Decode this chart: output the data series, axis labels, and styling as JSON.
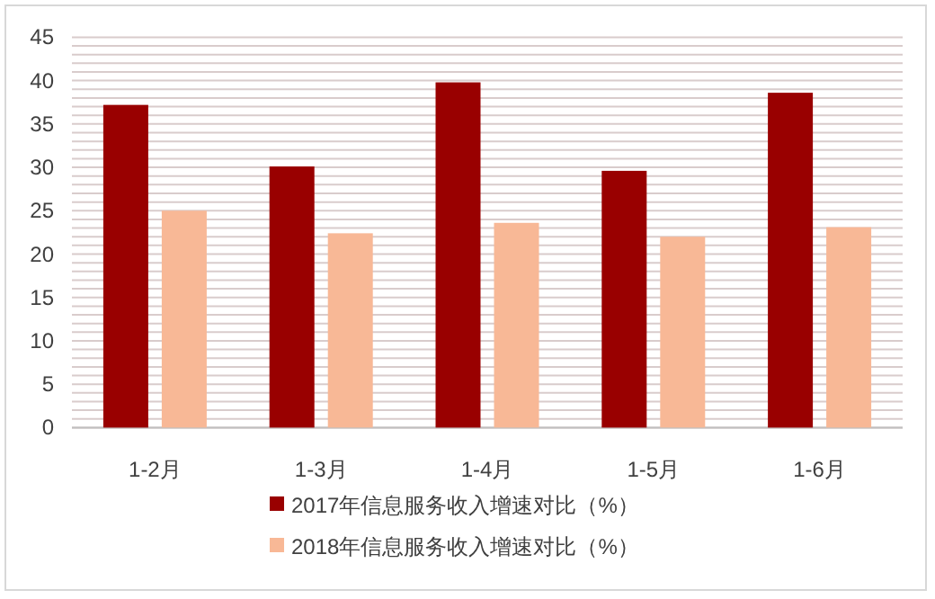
{
  "chart_data": {
    "type": "bar",
    "categories": [
      "1-2月",
      "1-3月",
      "1-4月",
      "1-5月",
      "1-6月"
    ],
    "series": [
      {
        "name": "2017年信息服务收入增速对比（%）",
        "color": "#990000",
        "values": [
          37.2,
          30.1,
          39.8,
          29.6,
          38.6
        ]
      },
      {
        "name": "2018年信息服务收入增速对比（%）",
        "color": "#f8b896",
        "values": [
          25.0,
          22.4,
          23.6,
          22.0,
          23.1
        ]
      }
    ],
    "ylim": [
      0,
      45
    ],
    "yticks": [
      0,
      {
        "value": 1,
        "label": null
      },
      {
        "value": 2,
        "label": null
      },
      {
        "value": 3,
        "label": null
      },
      {
        "value": 4,
        "label": null
      },
      5,
      {
        "value": 6,
        "label": null
      },
      {
        "value": 7,
        "label": null
      },
      {
        "value": 8,
        "label": null
      },
      {
        "value": 9,
        "label": null
      },
      10,
      {
        "value": 11,
        "label": null
      },
      {
        "value": 12,
        "label": null
      },
      {
        "value": 13,
        "label": null
      },
      {
        "value": 14,
        "label": null
      },
      15,
      {
        "value": 16,
        "label": null
      },
      {
        "value": 17,
        "label": null
      },
      {
        "value": 18,
        "label": null
      },
      {
        "value": 19,
        "label": null
      },
      20,
      {
        "value": 21,
        "label": null
      },
      {
        "value": 22,
        "label": null
      },
      {
        "value": 23,
        "label": null
      },
      {
        "value": 24,
        "label": null
      },
      25,
      {
        "value": 26,
        "label": null
      },
      {
        "value": 27,
        "label": null
      },
      {
        "value": 28,
        "label": null
      },
      {
        "value": 29,
        "label": null
      },
      30,
      {
        "value": 31,
        "label": null
      },
      {
        "value": 32,
        "label": null
      },
      {
        "value": 33,
        "label": null
      },
      {
        "value": 34,
        "label": null
      },
      35,
      {
        "value": 36,
        "label": null
      },
      {
        "value": 37,
        "label": null
      },
      {
        "value": 38,
        "label": null
      },
      {
        "value": 39,
        "label": null
      },
      40,
      {
        "value": 41,
        "label": null
      },
      {
        "value": 42,
        "label": null
      },
      {
        "value": 43,
        "label": null
      },
      {
        "value": 44,
        "label": null
      },
      45
    ],
    "grid": "y",
    "legend": "bottom"
  }
}
